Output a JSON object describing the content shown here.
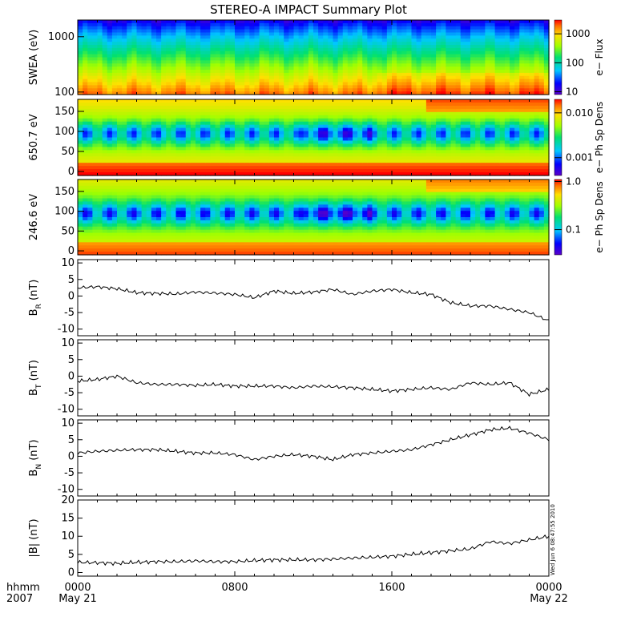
{
  "title": "STEREO-A IMPACT Summary Plot",
  "stamp": "Wed Jun  6 08:47:55 2010",
  "x_axis": {
    "ticks": [
      "0000",
      "0800",
      "1600",
      "0000"
    ],
    "date_labels": [
      "May 21",
      "May 22"
    ],
    "corner_labels": [
      "hhmm",
      "2007"
    ]
  },
  "chart_data": [
    {
      "type": "heatmap",
      "ylabel": "SWEA (eV)",
      "yscale": "log",
      "ylim": [
        90,
        2000
      ],
      "yticks": [
        "100",
        "1000"
      ],
      "colorbar": {
        "label": "e− Flux",
        "scale": "log",
        "range": [
          8,
          3000
        ],
        "ticks": [
          "10",
          "100",
          "1000"
        ]
      },
      "description_levels": {
        "100": "high (orange/red)",
        "1000": "low (blue)"
      }
    },
    {
      "type": "heatmap",
      "ylabel": "650.7 eV",
      "ylim": [
        -10,
        180
      ],
      "yticks": [
        "0",
        "50",
        "100",
        "150"
      ],
      "colorbar": {
        "label": "e− Ph Sp Dens",
        "scale": "log",
        "range": [
          0.0004,
          0.02
        ],
        "ticks": [
          "0.001",
          "0.010"
        ]
      }
    },
    {
      "type": "heatmap",
      "ylabel": "246.6 eV",
      "ylim": [
        -10,
        180
      ],
      "yticks": [
        "0",
        "50",
        "100",
        "150"
      ],
      "colorbar": {
        "label": "e− Ph Sp Dens",
        "scale": "log",
        "range": [
          0.03,
          1.1
        ],
        "ticks": [
          "0.1",
          "1.0"
        ]
      }
    },
    {
      "type": "line",
      "ylabel": "B_R (nT)",
      "ylim": [
        -12,
        11
      ],
      "yticks": [
        "-10",
        "-5",
        "0",
        "5",
        "10"
      ],
      "x": [
        0,
        1,
        2,
        3,
        4,
        5,
        6,
        7,
        8,
        9,
        10,
        11,
        12,
        13,
        14,
        15,
        16,
        17,
        18,
        19,
        20,
        21,
        22,
        23,
        24
      ],
      "values": [
        2.5,
        2.8,
        2.2,
        1.0,
        0.8,
        0.6,
        1.2,
        0.9,
        0.5,
        -0.5,
        1.5,
        0.8,
        1.2,
        2.0,
        0.5,
        1.5,
        2.0,
        1.0,
        0.5,
        -2.0,
        -3.0,
        -3.0,
        -4.0,
        -5.0,
        -7.5
      ]
    },
    {
      "type": "line",
      "ylabel": "B_T (nT)",
      "ylim": [
        -12,
        11
      ],
      "yticks": [
        "-10",
        "-5",
        "0",
        "5",
        "10"
      ],
      "x": [
        0,
        1,
        2,
        3,
        4,
        5,
        6,
        7,
        8,
        9,
        10,
        11,
        12,
        13,
        14,
        15,
        16,
        17,
        18,
        19,
        20,
        21,
        22,
        23,
        24
      ],
      "values": [
        -1.5,
        -1.0,
        0.0,
        -2.0,
        -2.5,
        -2.5,
        -2.8,
        -2.5,
        -3.0,
        -3.0,
        -3.0,
        -3.5,
        -3.0,
        -3.2,
        -3.5,
        -4.0,
        -4.5,
        -4.0,
        -3.5,
        -4.0,
        -2.0,
        -2.5,
        -2.0,
        -5.5,
        -4.0
      ]
    },
    {
      "type": "line",
      "ylabel": "B_N (nT)",
      "ylim": [
        -12,
        11
      ],
      "yticks": [
        "-10",
        "-5",
        "0",
        "5",
        "10"
      ],
      "x": [
        0,
        1,
        2,
        3,
        4,
        5,
        6,
        7,
        8,
        9,
        10,
        11,
        12,
        13,
        14,
        15,
        16,
        17,
        18,
        19,
        20,
        21,
        22,
        23,
        24
      ],
      "values": [
        1.0,
        1.5,
        1.8,
        2.0,
        2.0,
        1.5,
        1.0,
        1.0,
        0.5,
        -1.0,
        0.0,
        0.5,
        0.0,
        -1.0,
        0.5,
        1.0,
        1.5,
        2.0,
        3.5,
        5.0,
        6.5,
        8.0,
        8.5,
        7.0,
        5.0
      ]
    },
    {
      "type": "line",
      "ylabel": "|B| (nT)",
      "ylim": [
        -1,
        20
      ],
      "yticks": [
        "0",
        "5",
        "10",
        "15",
        "20"
      ],
      "x": [
        0,
        1,
        2,
        3,
        4,
        5,
        6,
        7,
        8,
        9,
        10,
        11,
        12,
        13,
        14,
        15,
        16,
        17,
        18,
        19,
        20,
        21,
        22,
        23,
        24
      ],
      "values": [
        2.8,
        2.7,
        2.5,
        2.8,
        3.0,
        3.0,
        3.2,
        3.0,
        3.0,
        3.3,
        3.5,
        3.5,
        3.5,
        3.7,
        4.0,
        4.2,
        4.5,
        5.0,
        5.5,
        6.0,
        6.5,
        8.5,
        8.0,
        9.0,
        10.0
      ]
    }
  ]
}
